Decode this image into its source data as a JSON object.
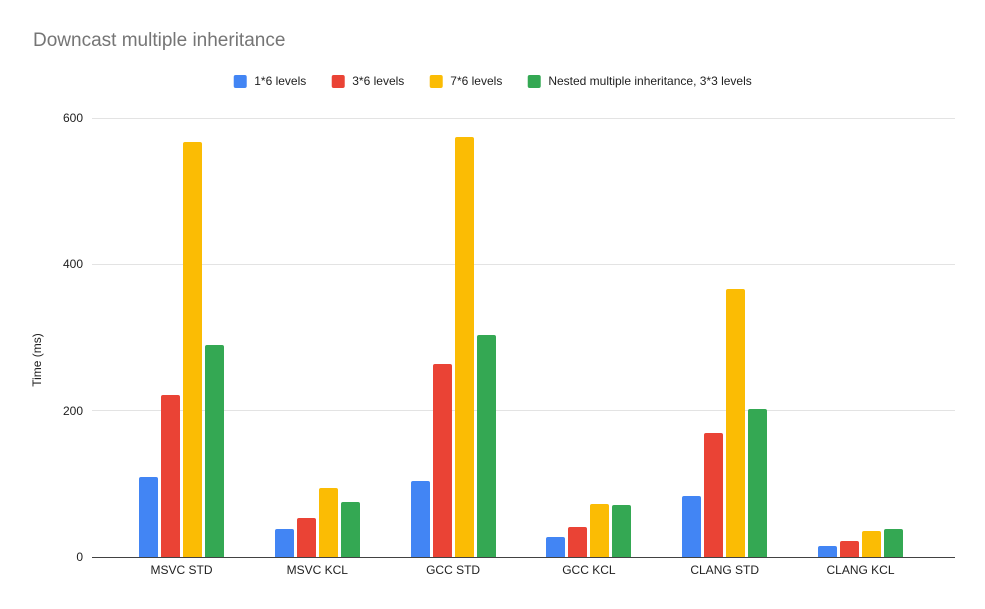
{
  "title": "Downcast multiple inheritance",
  "legend": [
    {
      "label": "1*6 levels",
      "color": "#4285F4"
    },
    {
      "label": "3*6 levels",
      "color": "#EA4335"
    },
    {
      "label": "7*6 levels",
      "color": "#FBBC04"
    },
    {
      "label": "Nested multiple inheritance, 3*3 levels",
      "color": "#34A853"
    }
  ],
  "chart_data": {
    "type": "bar",
    "title": "Downcast multiple inheritance",
    "categories": [
      "MSVC STD",
      "MSVC KCL",
      "GCC STD",
      "GCC KCL",
      "CLANG STD",
      "CLANG KCL"
    ],
    "series": [
      {
        "name": "1*6 levels",
        "color": "#4285F4",
        "values": [
          110,
          38,
          104,
          27,
          83,
          15
        ]
      },
      {
        "name": "3*6 levels",
        "color": "#EA4335",
        "values": [
          222,
          53,
          264,
          41,
          170,
          22
        ]
      },
      {
        "name": "7*6 levels",
        "color": "#FBBC04",
        "values": [
          567,
          94,
          574,
          72,
          366,
          36
        ]
      },
      {
        "name": "Nested multiple inheritance, 3*3 levels",
        "color": "#34A853",
        "values": [
          290,
          75,
          304,
          71,
          202,
          38
        ]
      }
    ],
    "xlabel": "",
    "ylabel": "Time (ms)",
    "ylim": [
      0,
      600
    ],
    "yticks": [
      0,
      200,
      400,
      600
    ],
    "grid": true,
    "legend_position": "top"
  }
}
